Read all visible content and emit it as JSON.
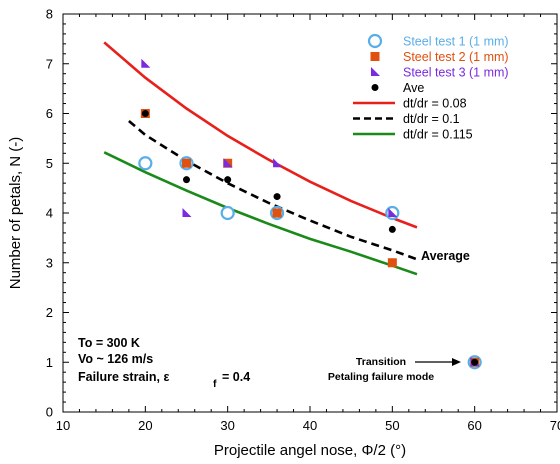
{
  "chart_data": {
    "type": "scatter",
    "xlabel": "Projectile angel nose, Φ/2 (°)",
    "ylabel": "Number of petals, N (-)",
    "xlim": [
      10,
      70
    ],
    "ylim": [
      0,
      8
    ],
    "xticks": [
      "10",
      "20",
      "30",
      "40",
      "50",
      "60",
      "70"
    ],
    "yticks": [
      "0",
      "1",
      "2",
      "3",
      "4",
      "5",
      "6",
      "7",
      "8"
    ],
    "grid": false,
    "legend_position": "top-right",
    "series": [
      {
        "name": "Steel test 1 (1 mm)",
        "kind": "points",
        "marker": "circle-open",
        "color": "#5aaee8",
        "points": [
          [
            20,
            5
          ],
          [
            25,
            5
          ],
          [
            30,
            4
          ],
          [
            36,
            4
          ],
          [
            50,
            4
          ],
          [
            60,
            1
          ]
        ]
      },
      {
        "name": "Steel test 2 (1 mm)",
        "kind": "points",
        "marker": "square",
        "color": "#e0500f",
        "points": [
          [
            20,
            6
          ],
          [
            25,
            5
          ],
          [
            30,
            5
          ],
          [
            36,
            4
          ],
          [
            50,
            3
          ],
          [
            60,
            1
          ]
        ]
      },
      {
        "name": "Steel test 3 (1 mm)",
        "kind": "points",
        "marker": "triangle",
        "color": "#7a2be0",
        "points": [
          [
            20,
            7
          ],
          [
            25,
            4
          ],
          [
            30,
            5
          ],
          [
            36,
            5
          ],
          [
            50,
            4
          ],
          [
            60,
            1
          ]
        ]
      },
      {
        "name": "Ave",
        "kind": "points",
        "marker": "dot",
        "color": "#000000",
        "points": [
          [
            20,
            6
          ],
          [
            25,
            4.67
          ],
          [
            30,
            4.67
          ],
          [
            36,
            4.33
          ],
          [
            50,
            3.67
          ],
          [
            60,
            1
          ]
        ]
      },
      {
        "name": "dt/dr = 0.08",
        "kind": "line",
        "dash": false,
        "color": "#e8201c",
        "points": [
          [
            15,
            7.43
          ],
          [
            20,
            6.72
          ],
          [
            25,
            6.1
          ],
          [
            30,
            5.55
          ],
          [
            35,
            5.07
          ],
          [
            40,
            4.63
          ],
          [
            45,
            4.24
          ],
          [
            50,
            3.9
          ],
          [
            53,
            3.71
          ]
        ]
      },
      {
        "name": "dt/dr = 0.1",
        "kind": "line",
        "dash": true,
        "color": "#000000",
        "points": [
          [
            18,
            5.85
          ],
          [
            20,
            5.57
          ],
          [
            25,
            5.05
          ],
          [
            30,
            4.6
          ],
          [
            35,
            4.2
          ],
          [
            40,
            3.85
          ],
          [
            45,
            3.52
          ],
          [
            50,
            3.25
          ],
          [
            53,
            3.07
          ]
        ]
      },
      {
        "name": "dt/dr = 0.115",
        "kind": "line",
        "dash": false,
        "color": "#1a8a1a",
        "points": [
          [
            15,
            5.22
          ],
          [
            20,
            4.82
          ],
          [
            25,
            4.45
          ],
          [
            30,
            4.1
          ],
          [
            35,
            3.78
          ],
          [
            40,
            3.48
          ],
          [
            45,
            3.22
          ],
          [
            50,
            2.94
          ],
          [
            53,
            2.77
          ]
        ]
      }
    ],
    "annotations": {
      "average_label": "Average",
      "conditions": [
        "To = 300 K",
        "Vo ~ 126 m/s",
        "Failure strain, ε",
        "f",
        "= 0.4"
      ],
      "transition": [
        "Transition",
        "Petaling failure mode"
      ]
    }
  }
}
